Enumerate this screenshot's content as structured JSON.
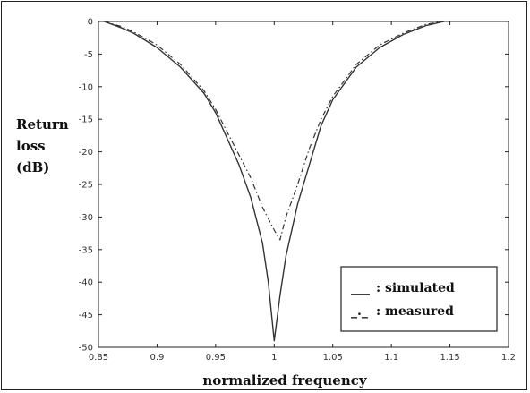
{
  "chart_data": {
    "type": "line",
    "xlabel": "normalized frequency",
    "ylabel_lines": [
      "Return",
      "loss",
      "(dB)"
    ],
    "xlim": [
      0.85,
      1.2
    ],
    "ylim": [
      -50,
      0
    ],
    "x_ticks": [
      "0.85",
      "0.9",
      "0.95",
      "1",
      "1.05",
      "1.1",
      "1.15",
      "1.2"
    ],
    "y_ticks": [
      "0",
      "-5",
      "-10",
      "-15",
      "-20",
      "-25",
      "-30",
      "-35",
      "-40",
      "-45",
      "-50"
    ],
    "grid": false,
    "legend_position": "bottom-right",
    "legend": [
      {
        "sample": "___",
        "label": ": simulated"
      },
      {
        "sample": "_._",
        "label": ": measured"
      }
    ],
    "series": [
      {
        "name": "simulated",
        "style": "solid",
        "x": [
          0.855,
          0.87,
          0.88,
          0.9,
          0.92,
          0.94,
          0.95,
          0.96,
          0.97,
          0.98,
          0.99,
          0.995,
          1.0,
          1.005,
          1.01,
          1.02,
          1.03,
          1.04,
          1.05,
          1.07,
          1.09,
          1.11,
          1.13,
          1.145
        ],
        "y": [
          0,
          -1,
          -1.8,
          -4,
          -7,
          -11,
          -14,
          -18,
          -22,
          -27,
          -34,
          -40,
          -49,
          -42,
          -36,
          -28,
          -22,
          -16,
          -12,
          -7,
          -4,
          -2,
          -0.6,
          0
        ]
      },
      {
        "name": "measured",
        "style": "dashdot",
        "x": [
          0.855,
          0.87,
          0.88,
          0.9,
          0.92,
          0.94,
          0.95,
          0.96,
          0.97,
          0.98,
          0.99,
          1.0,
          1.005,
          1.01,
          1.02,
          1.03,
          1.04,
          1.05,
          1.07,
          1.09,
          1.11,
          1.13,
          1.145
        ],
        "y": [
          0,
          -0.8,
          -1.6,
          -3.6,
          -6.6,
          -10.6,
          -13.5,
          -17,
          -20.5,
          -24,
          -28.5,
          -32,
          -33.5,
          -30,
          -25,
          -19.5,
          -15,
          -11.5,
          -6.6,
          -3.6,
          -1.8,
          -0.4,
          0
        ]
      }
    ]
  }
}
